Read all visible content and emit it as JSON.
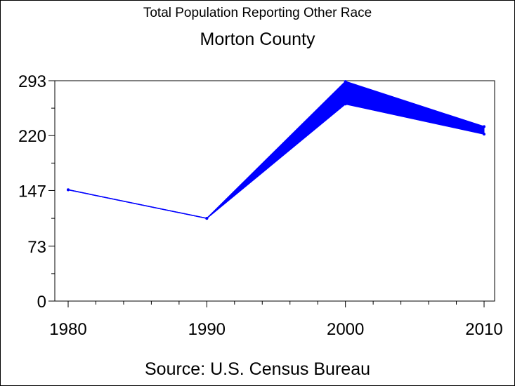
{
  "chart_data": {
    "type": "line",
    "title": "Total Population Reporting Other Race",
    "subtitle": "Morton County",
    "footnote": "Source: U.S. Census Bureau",
    "x": [
      1980,
      1990,
      2000,
      2010
    ],
    "x_tick_labels": [
      "1980",
      "1990",
      "2000",
      "2010"
    ],
    "y_tick_labels": [
      "0",
      "73",
      "147",
      "220",
      "293"
    ],
    "y_ticks": [
      0,
      73,
      147,
      220,
      293
    ],
    "ylim": [
      0,
      293
    ],
    "xlim": [
      1980,
      2010
    ],
    "series": [
      {
        "values": [
          148,
          110,
          292,
          232
        ],
        "color": "#0000ff"
      },
      {
        "values": [
          148,
          110,
          262,
          222
        ],
        "color": "#0000ff"
      }
    ],
    "band_fill": true,
    "grid": false
  }
}
